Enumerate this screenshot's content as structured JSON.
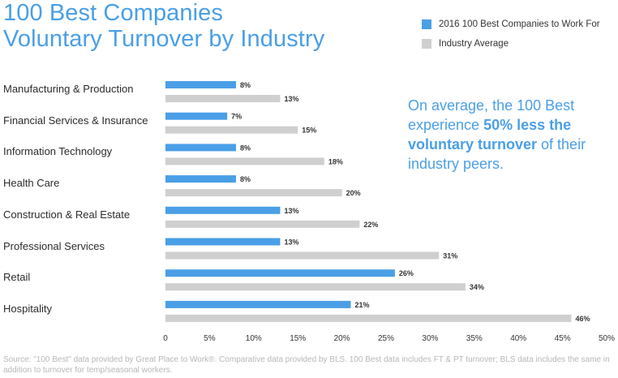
{
  "title_line1": "100 Best Companies",
  "title_line2": "Voluntary Turnover by Industry",
  "legend": [
    {
      "label": "2016 100 Best Companies to Work For",
      "color": "#4a9fe6"
    },
    {
      "label": "Industry Average",
      "color": "#cfcfcf"
    }
  ],
  "note": {
    "pre": "On average, the 100 Best experience ",
    "bold": "50% less the voluntary turnover",
    "post": " of their industry peers."
  },
  "source": "Source: \"100 Best\" data provided by Great Place to Work®. Comparative data provided by BLS. 100 Best data includes FT & PT turnover; BLS data includes the same in addition to turnover for temp/seasonal workers.",
  "chart_data": {
    "type": "bar",
    "orientation": "horizontal",
    "title": "100 Best Companies Voluntary Turnover by Industry",
    "categories": [
      "Manufacturing & Production",
      "Financial Services & Insurance",
      "Information Technology",
      "Health Care",
      "Construction & Real Estate",
      "Professional Services",
      "Retail",
      "Hospitality"
    ],
    "series": [
      {
        "name": "2016 100 Best Companies to Work For",
        "color": "#4a9fe6",
        "values": [
          8,
          7,
          8,
          8,
          13,
          13,
          26,
          21
        ]
      },
      {
        "name": "Industry Average",
        "color": "#cfcfcf",
        "values": [
          13,
          15,
          18,
          20,
          22,
          31,
          34,
          46
        ]
      }
    ],
    "value_suffix": "%",
    "xlim": [
      0,
      50
    ],
    "xticks": [
      "0",
      "5%",
      "10%",
      "15%",
      "20%",
      "25%",
      "30%",
      "35%",
      "40%",
      "45%",
      "50%"
    ],
    "xlabel": "",
    "ylabel": "",
    "grid": false,
    "legend_position": "top-right"
  }
}
